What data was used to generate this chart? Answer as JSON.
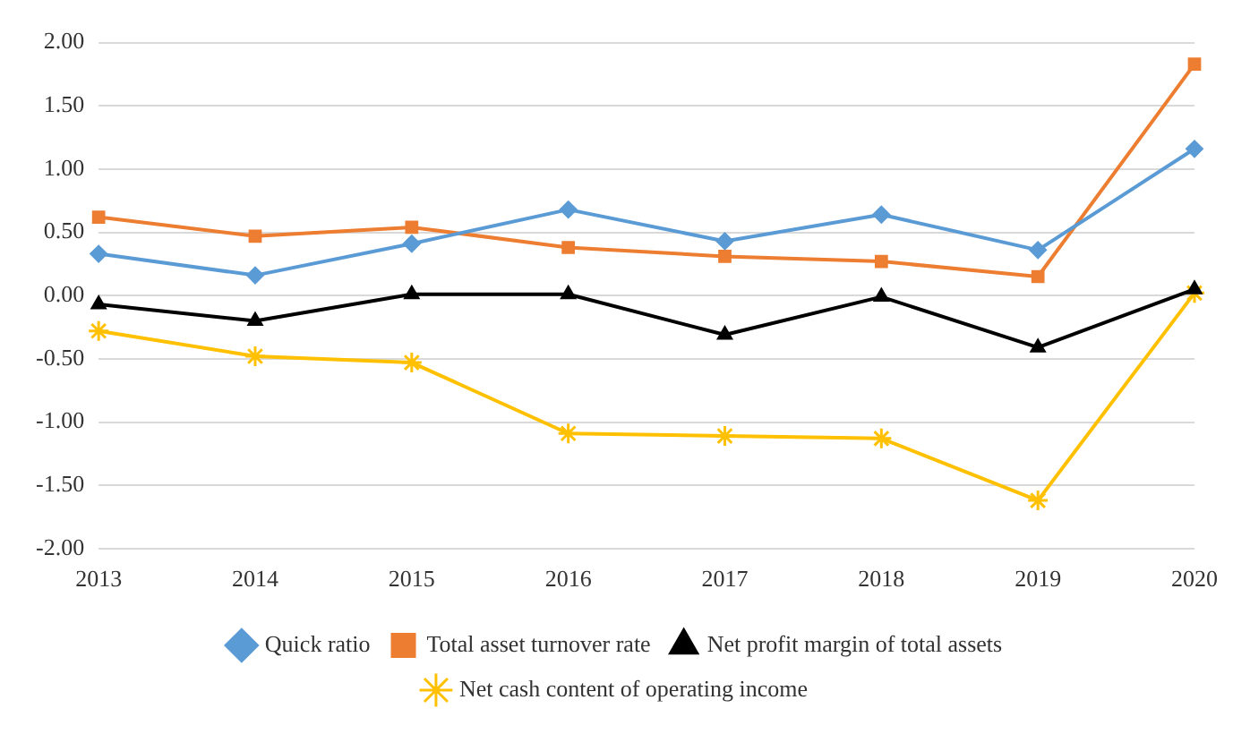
{
  "chart_data": {
    "type": "line",
    "categories": [
      "2013",
      "2014",
      "2015",
      "2016",
      "2017",
      "2018",
      "2019",
      "2020"
    ],
    "series": [
      {
        "name": "Quick ratio",
        "color": "#5b9bd5",
        "marker": "diamond",
        "values": [
          0.33,
          0.16,
          0.41,
          0.68,
          0.43,
          0.64,
          0.36,
          1.16
        ]
      },
      {
        "name": "Total asset turnover rate",
        "color": "#ed7d31",
        "marker": "square",
        "values": [
          0.62,
          0.47,
          0.54,
          0.38,
          0.31,
          0.27,
          0.15,
          1.83
        ]
      },
      {
        "name": "Net profit margin of total assets",
        "color": "#000000",
        "marker": "triangle",
        "values": [
          -0.07,
          -0.2,
          0.01,
          0.01,
          -0.31,
          -0.01,
          -0.41,
          0.05
        ]
      },
      {
        "name": "Net cash content of operating income",
        "color": "#ffc000",
        "marker": "cross",
        "values": [
          -0.28,
          -0.48,
          -0.53,
          -1.09,
          -1.11,
          -1.13,
          -1.62,
          0.02
        ]
      }
    ],
    "ylim": [
      -2,
      2
    ],
    "yticks": [
      {
        "value": -2,
        "label": "-2.00"
      },
      {
        "value": -1.5,
        "label": "-1.50"
      },
      {
        "value": -1,
        "label": "-1.00"
      },
      {
        "value": -0.5,
        "label": "-0.50"
      },
      {
        "value": 0,
        "label": "0.00"
      },
      {
        "value": 0.5,
        "label": "0.50"
      },
      {
        "value": 1,
        "label": "1.00"
      },
      {
        "value": 1.5,
        "label": "1.50"
      },
      {
        "value": 2,
        "label": "2.00"
      }
    ],
    "grid": "y",
    "legend": "bottom",
    "line_style": "solid"
  }
}
